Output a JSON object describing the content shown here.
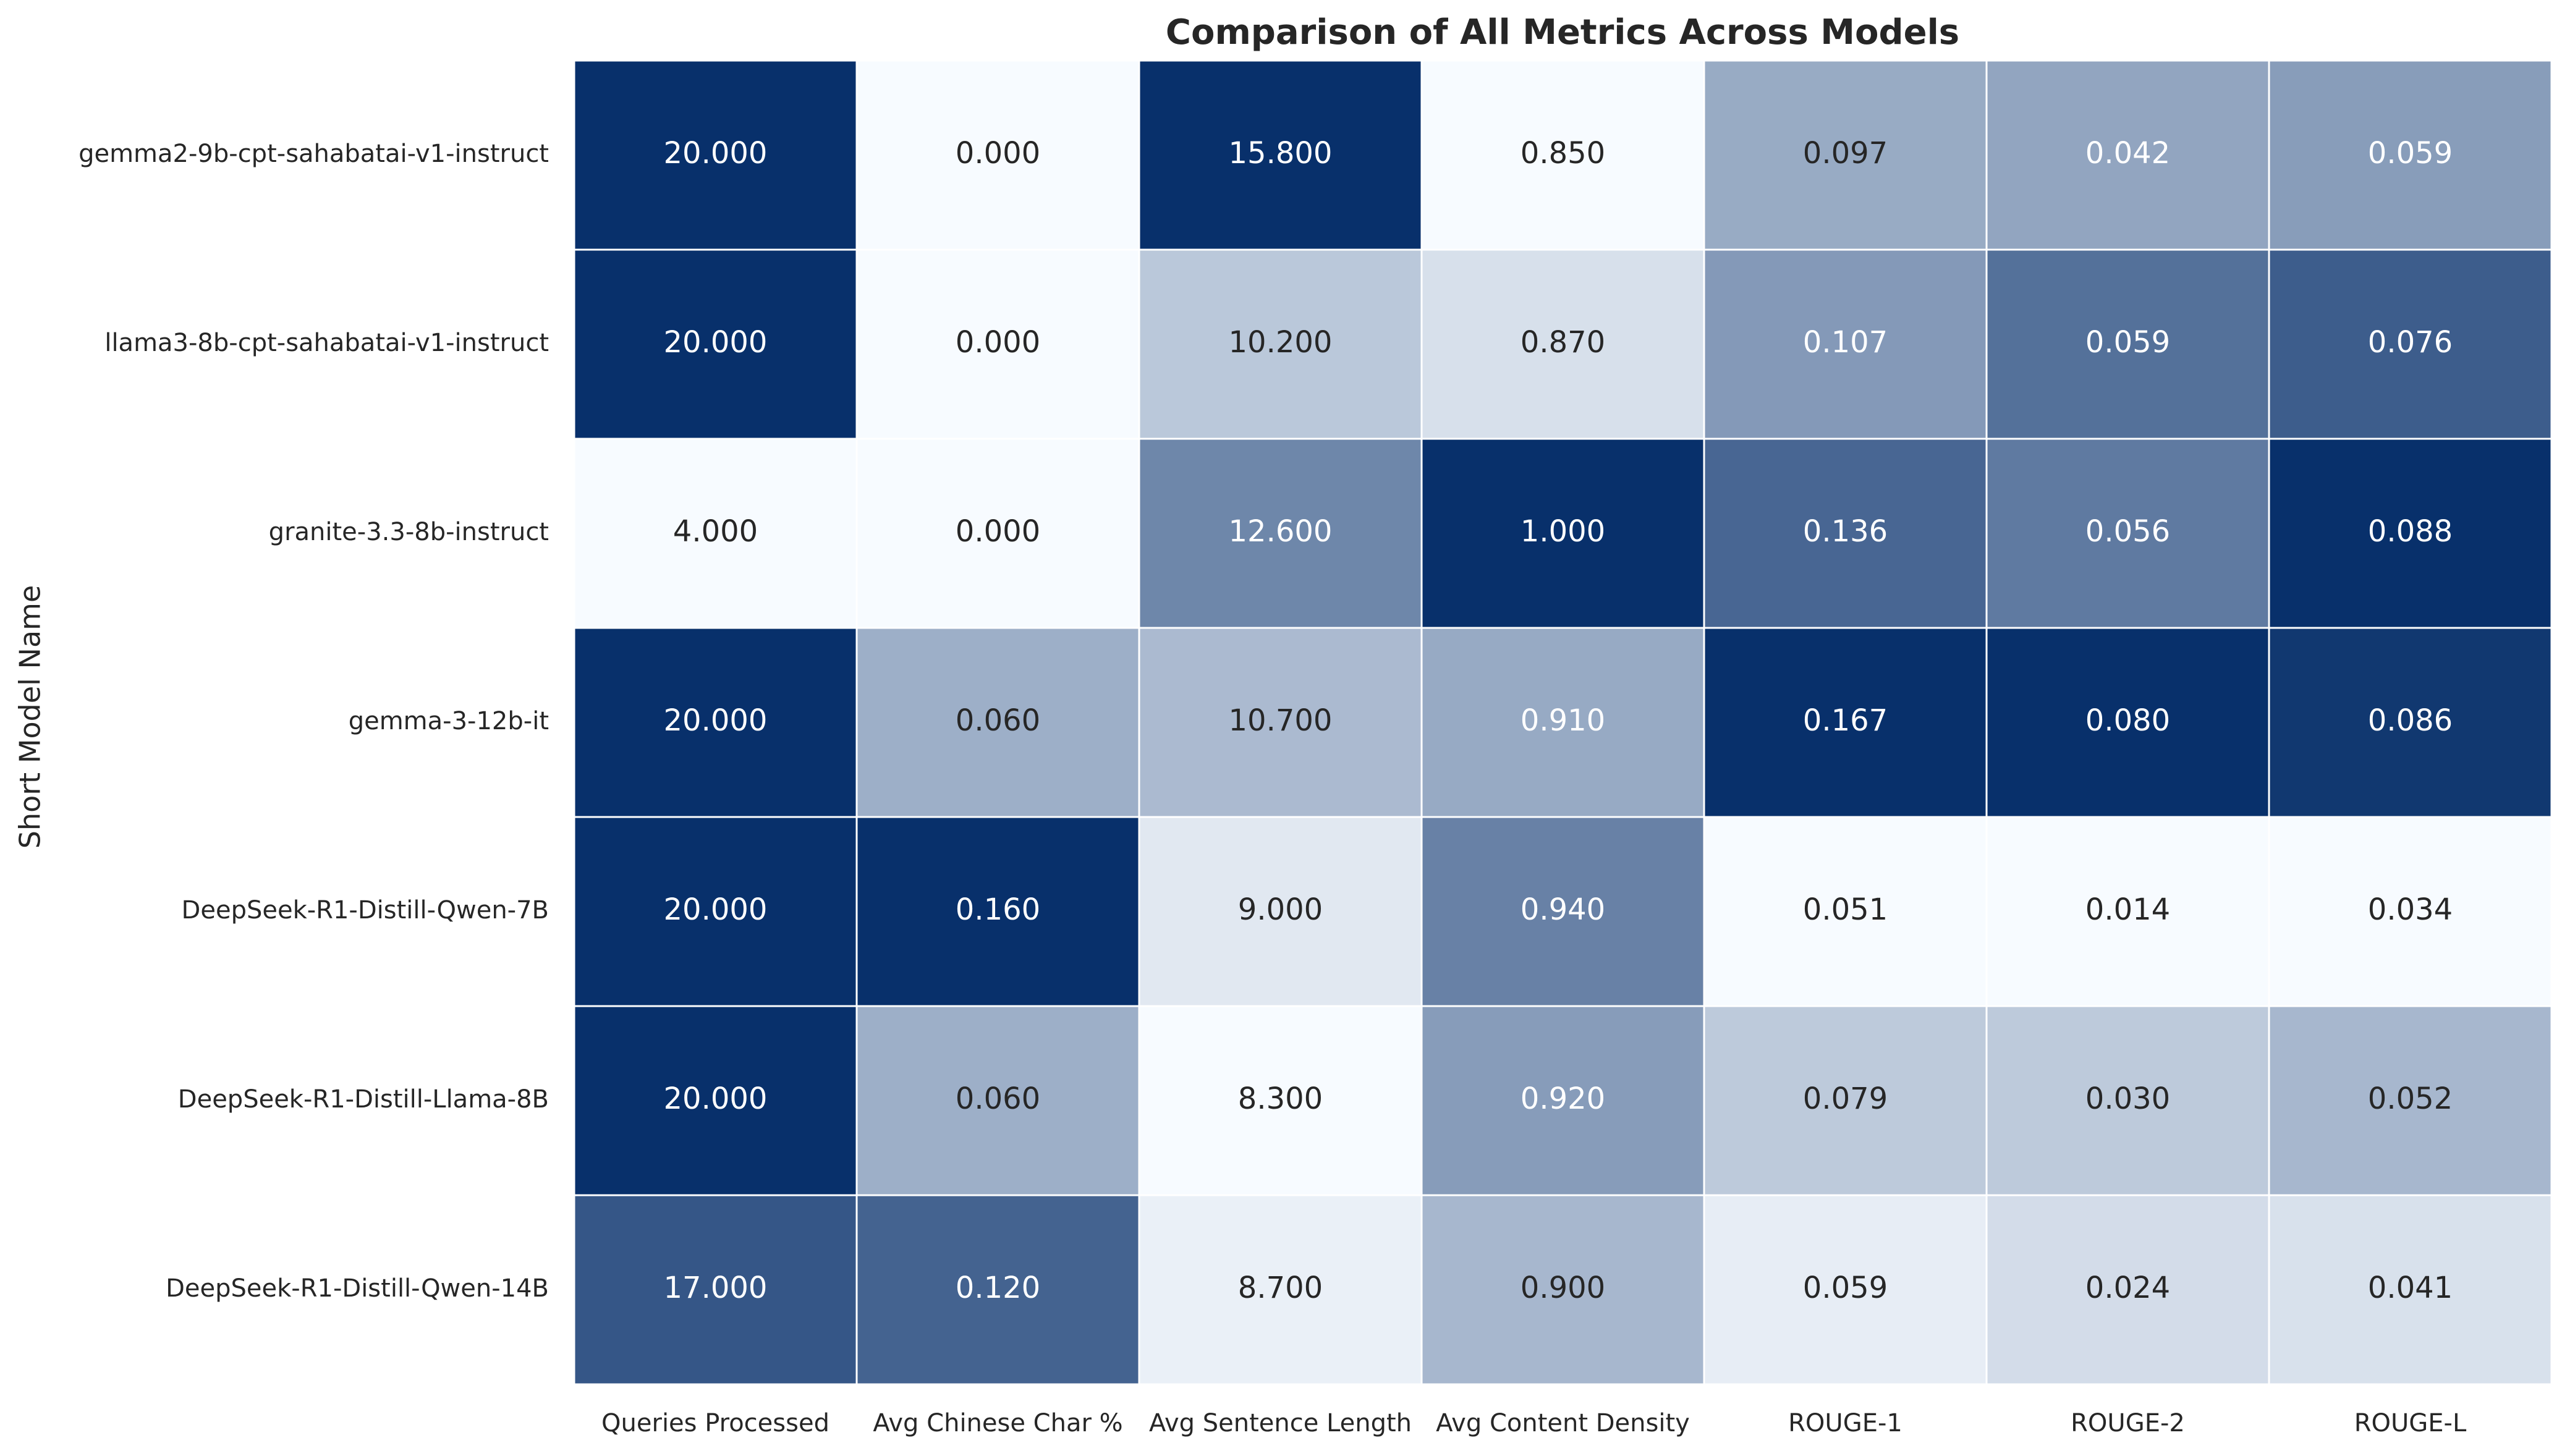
{
  "chart_data": {
    "type": "heatmap",
    "title": "Comparison of All Metrics Across Models",
    "xlabel": "",
    "ylabel": "Short Model Name",
    "columns": [
      "Queries Processed",
      "Avg Chinese Char %",
      "Avg Sentence Length",
      "Avg Content Density",
      "ROUGE-1",
      "ROUGE-2",
      "ROUGE-L"
    ],
    "rows": [
      "gemma2-9b-cpt-sahabatai-v1-instruct",
      "llama3-8b-cpt-sahabatai-v1-instruct",
      "granite-3.3-8b-instruct",
      "gemma-3-12b-it",
      "DeepSeek-R1-Distill-Qwen-7B",
      "DeepSeek-R1-Distill-Llama-8B",
      "DeepSeek-R1-Distill-Qwen-14B"
    ],
    "values": [
      [
        20.0,
        0.0,
        15.8,
        0.85,
        0.097,
        0.042,
        0.059
      ],
      [
        20.0,
        0.0,
        10.2,
        0.87,
        0.107,
        0.059,
        0.076
      ],
      [
        4.0,
        0.0,
        12.6,
        1.0,
        0.136,
        0.056,
        0.088
      ],
      [
        20.0,
        0.06,
        10.7,
        0.91,
        0.167,
        0.08,
        0.086
      ],
      [
        20.0,
        0.16,
        9.0,
        0.94,
        0.051,
        0.014,
        0.034
      ],
      [
        20.0,
        0.06,
        8.3,
        0.92,
        0.079,
        0.03,
        0.052
      ],
      [
        17.0,
        0.12,
        8.7,
        0.9,
        0.059,
        0.024,
        0.041
      ]
    ],
    "value_format": "3 decimals",
    "color_scale": "per-column normalized, light to dark blue",
    "colors": {
      "low": "#f7fbff",
      "high": "#08306b",
      "cell_border": "#ffffff",
      "text_dark": "#262626",
      "text_light": "#ffffff"
    },
    "colorbar": false,
    "legend": "none",
    "grid": false
  }
}
